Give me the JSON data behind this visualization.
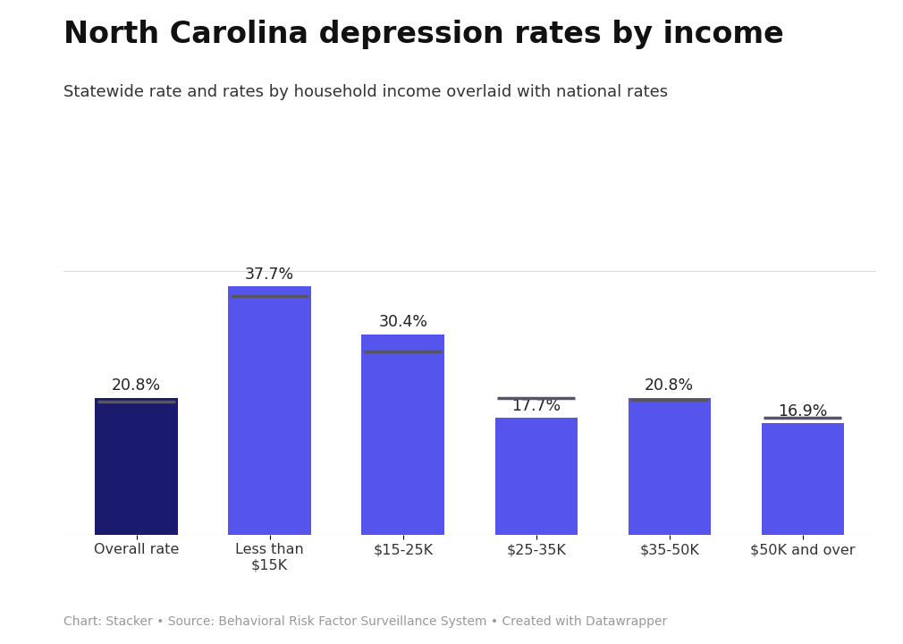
{
  "title": "North Carolina depression rates by income",
  "subtitle": "Statewide rate and rates by household income overlaid with national rates",
  "footer": "Chart: Stacker • Source: Behavioral Risk Factor Surveillance System • Created with Datawrapper",
  "categories": [
    "Overall rate",
    "Less than\n$15K",
    "$15-25K",
    "$25-35K",
    "$35-50K",
    "$50K and over"
  ],
  "values": [
    20.8,
    37.7,
    30.4,
    17.7,
    20.8,
    16.9
  ],
  "bar_colors": [
    "#1a1a6e",
    "#5555ee",
    "#5555ee",
    "#5555ee",
    "#5555ee",
    "#5555ee"
  ],
  "national_rates": [
    20.2,
    36.2,
    27.8,
    20.8,
    20.5,
    17.8
  ],
  "national_line_color": "#555566",
  "value_labels": [
    "20.8%",
    "37.7%",
    "30.4%",
    "17.7%",
    "20.8%",
    "16.9%"
  ],
  "ylim": [
    0,
    45
  ],
  "background_color": "#ffffff",
  "title_fontsize": 24,
  "subtitle_fontsize": 13,
  "label_fontsize": 12.5,
  "tick_fontsize": 11.5,
  "footer_fontsize": 10
}
